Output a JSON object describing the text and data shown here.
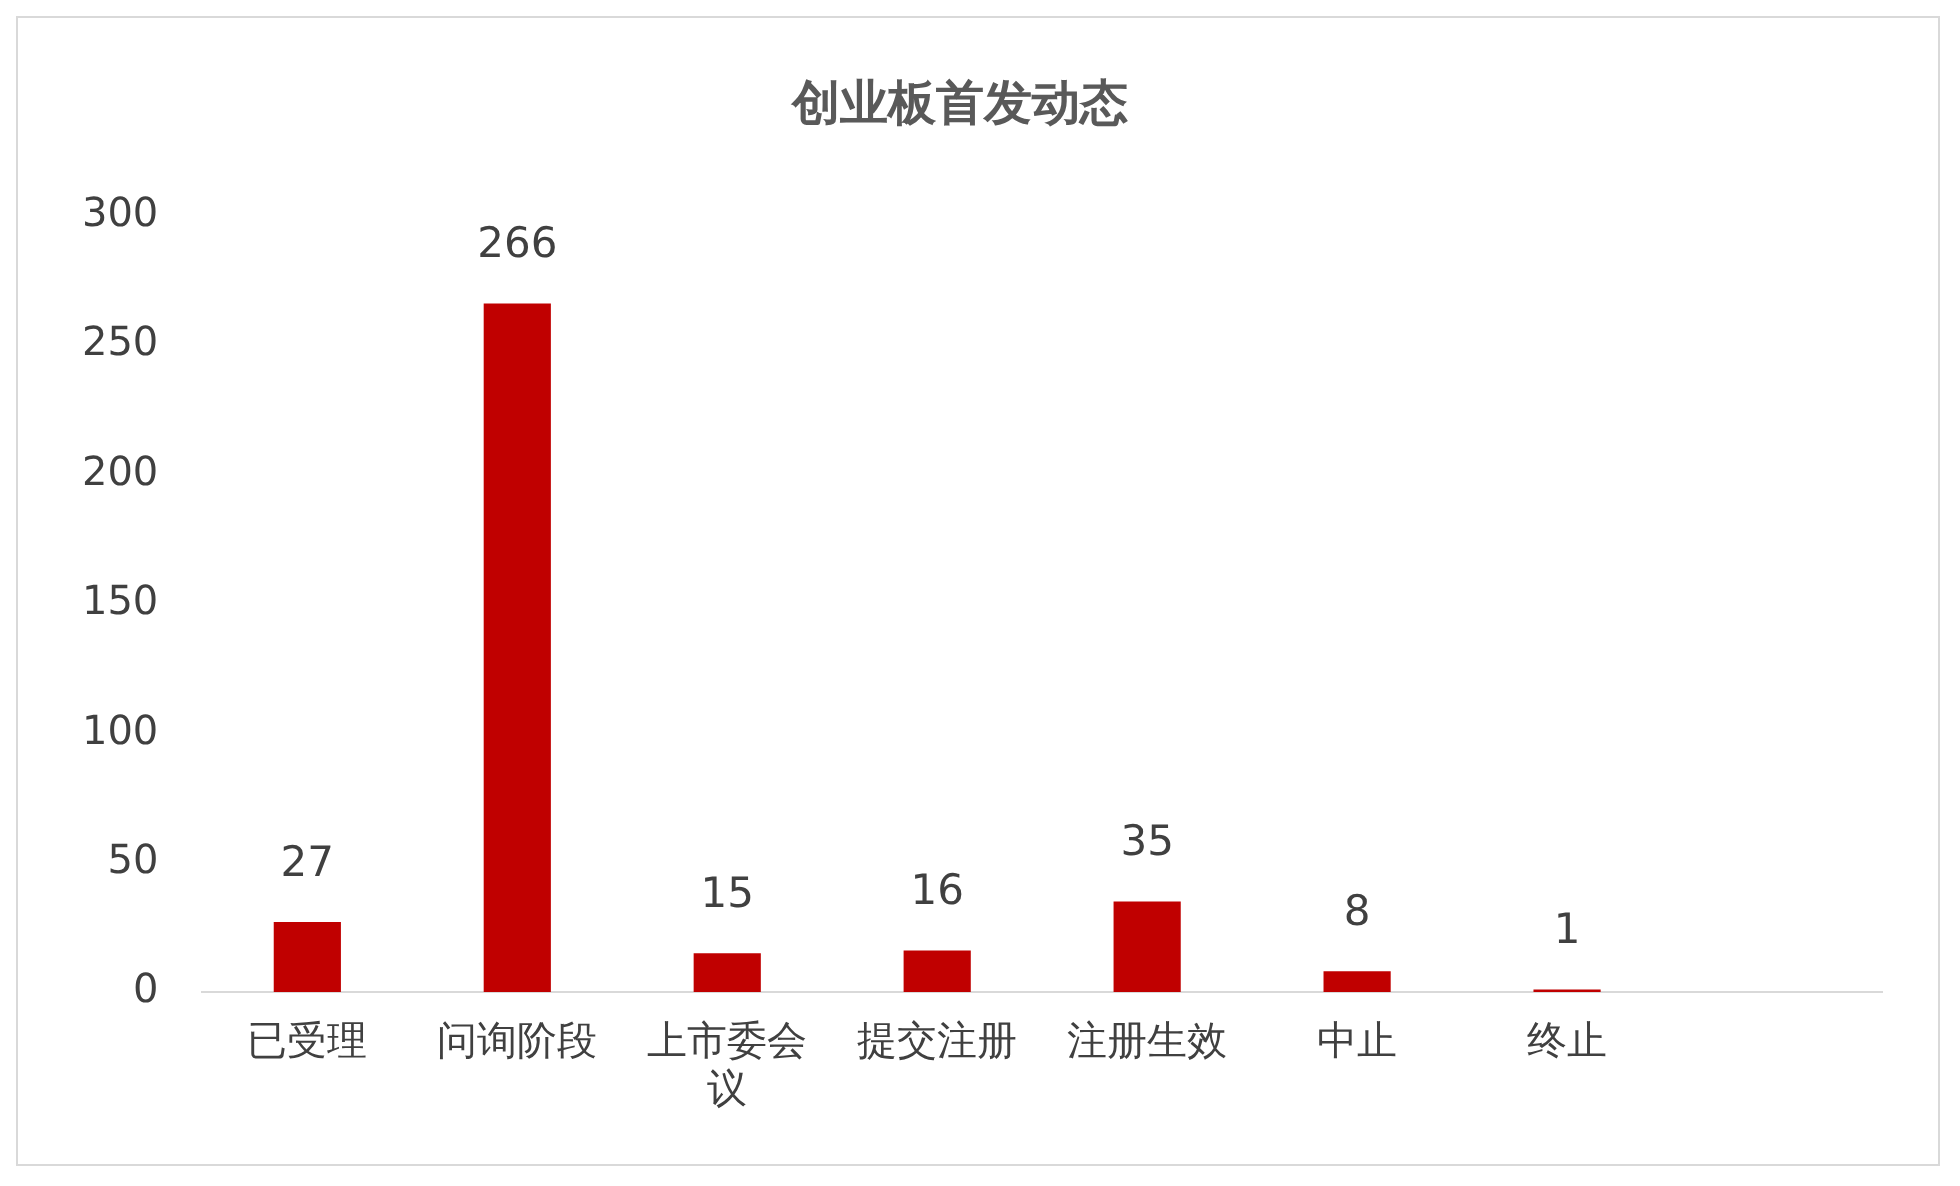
{
  "chart_data": {
    "type": "bar",
    "title": "创业板首发动态",
    "categories": [
      "已受理",
      "问询阶段",
      "上市委会议",
      "提交注册",
      "注册生效",
      "中止",
      "终止",
      null
    ],
    "values": [
      27,
      266,
      15,
      16,
      35,
      8,
      1,
      null
    ],
    "color": "#c00000",
    "ylim": [
      0,
      300
    ],
    "yticks": [
      0,
      50,
      100,
      150,
      200,
      250,
      300
    ],
    "data_labels": true,
    "legend": false
  }
}
